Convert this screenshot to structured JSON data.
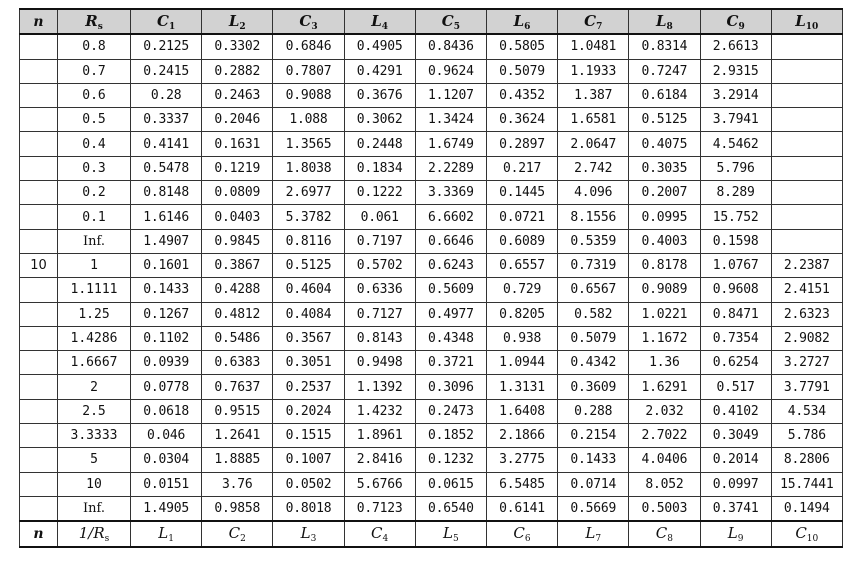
{
  "table": {
    "header": {
      "n": "n",
      "rs": {
        "base": "R",
        "sub": "s"
      },
      "cols": [
        {
          "base": "C",
          "sub": "1"
        },
        {
          "base": "L",
          "sub": "2"
        },
        {
          "base": "C",
          "sub": "3"
        },
        {
          "base": "L",
          "sub": "4"
        },
        {
          "base": "C",
          "sub": "5"
        },
        {
          "base": "L",
          "sub": "6"
        },
        {
          "base": "C",
          "sub": "7"
        },
        {
          "base": "L",
          "sub": "8"
        },
        {
          "base": "C",
          "sub": "9"
        },
        {
          "base": "L",
          "sub": "10"
        }
      ]
    },
    "footer": {
      "n": "n",
      "rs": "1/R",
      "rs_sub": "s",
      "cols": [
        {
          "base": "L",
          "sub": "1"
        },
        {
          "base": "C",
          "sub": "2"
        },
        {
          "base": "L",
          "sub": "3"
        },
        {
          "base": "C",
          "sub": "4"
        },
        {
          "base": "L",
          "sub": "5"
        },
        {
          "base": "C",
          "sub": "6"
        },
        {
          "base": "L",
          "sub": "7"
        },
        {
          "base": "C",
          "sub": "8"
        },
        {
          "base": "L",
          "sub": "9"
        },
        {
          "base": "C",
          "sub": "10"
        }
      ]
    },
    "rows": [
      {
        "n": "",
        "rs": "0.8",
        "values": [
          "0.2125",
          "0.3302",
          "0.6846",
          "0.4905",
          "0.8436",
          "0.5805",
          "1.0481",
          "0.8314",
          "2.6613",
          ""
        ]
      },
      {
        "n": "",
        "rs": "0.7",
        "values": [
          "0.2415",
          "0.2882",
          "0.7807",
          "0.4291",
          "0.9624",
          "0.5079",
          "1.1933",
          "0.7247",
          "2.9315",
          ""
        ]
      },
      {
        "n": "",
        "rs": "0.6",
        "values": [
          "0.28",
          "0.2463",
          "0.9088",
          "0.3676",
          "1.1207",
          "0.4352",
          "1.387",
          "0.6184",
          "3.2914",
          ""
        ]
      },
      {
        "n": "",
        "rs": "0.5",
        "values": [
          "0.3337",
          "0.2046",
          "1.088",
          "0.3062",
          "1.3424",
          "0.3624",
          "1.6581",
          "0.5125",
          "3.7941",
          ""
        ]
      },
      {
        "n": "",
        "rs": "0.4",
        "values": [
          "0.4141",
          "0.1631",
          "1.3565",
          "0.2448",
          "1.6749",
          "0.2897",
          "2.0647",
          "0.4075",
          "4.5462",
          ""
        ]
      },
      {
        "n": "",
        "rs": "0.3",
        "values": [
          "0.5478",
          "0.1219",
          "1.8038",
          "0.1834",
          "2.2289",
          "0.217",
          "2.742",
          "0.3035",
          "5.796",
          ""
        ]
      },
      {
        "n": "",
        "rs": "0.2",
        "values": [
          "0.8148",
          "0.0809",
          "2.6977",
          "0.1222",
          "3.3369",
          "0.1445",
          "4.096",
          "0.2007",
          "8.289",
          ""
        ]
      },
      {
        "n": "",
        "rs": "0.1",
        "values": [
          "1.6146",
          "0.0403",
          "5.3782",
          "0.061",
          "6.6602",
          "0.0721",
          "8.1556",
          "0.0995",
          "15.752",
          ""
        ]
      },
      {
        "n": "",
        "rs": "Inf.",
        "values": [
          "1.4907",
          "0.9845",
          "0.8116",
          "0.7197",
          "0.6646",
          "0.6089",
          "0.5359",
          "0.4003",
          "0.1598",
          ""
        ]
      },
      {
        "n": "10",
        "rs": "1",
        "values": [
          "0.1601",
          "0.3867",
          "0.5125",
          "0.5702",
          "0.6243",
          "0.6557",
          "0.7319",
          "0.8178",
          "1.0767",
          "2.2387"
        ]
      },
      {
        "n": "",
        "rs": "1.1111",
        "values": [
          "0.1433",
          "0.4288",
          "0.4604",
          "0.6336",
          "0.5609",
          "0.729",
          "0.6567",
          "0.9089",
          "0.9608",
          "2.4151"
        ]
      },
      {
        "n": "",
        "rs": "1.25",
        "values": [
          "0.1267",
          "0.4812",
          "0.4084",
          "0.7127",
          "0.4977",
          "0.8205",
          "0.582",
          "1.0221",
          "0.8471",
          "2.6323"
        ]
      },
      {
        "n": "",
        "rs": "1.4286",
        "values": [
          "0.1102",
          "0.5486",
          "0.3567",
          "0.8143",
          "0.4348",
          "0.938",
          "0.5079",
          "1.1672",
          "0.7354",
          "2.9082"
        ]
      },
      {
        "n": "",
        "rs": "1.6667",
        "values": [
          "0.0939",
          "0.6383",
          "0.3051",
          "0.9498",
          "0.3721",
          "1.0944",
          "0.4342",
          "1.36",
          "0.6254",
          "3.2727"
        ]
      },
      {
        "n": "",
        "rs": "2",
        "values": [
          "0.0778",
          "0.7637",
          "0.2537",
          "1.1392",
          "0.3096",
          "1.3131",
          "0.3609",
          "1.6291",
          "0.517",
          "3.7791"
        ]
      },
      {
        "n": "",
        "rs": "2.5",
        "values": [
          "0.0618",
          "0.9515",
          "0.2024",
          "1.4232",
          "0.2473",
          "1.6408",
          "0.288",
          "2.032",
          "0.4102",
          "4.534"
        ]
      },
      {
        "n": "",
        "rs": "3.3333",
        "values": [
          "0.046",
          "1.2641",
          "0.1515",
          "1.8961",
          "0.1852",
          "2.1866",
          "0.2154",
          "2.7022",
          "0.3049",
          "5.786"
        ]
      },
      {
        "n": "",
        "rs": "5",
        "values": [
          "0.0304",
          "1.8885",
          "0.1007",
          "2.8416",
          "0.1232",
          "3.2775",
          "0.1433",
          "4.0406",
          "0.2014",
          "8.2806"
        ]
      },
      {
        "n": "",
        "rs": "10",
        "values": [
          "0.0151",
          "3.76",
          "0.0502",
          "5.6766",
          "0.0615",
          "6.5485",
          "0.0714",
          "8.052",
          "0.0997",
          "15.7441"
        ]
      },
      {
        "n": "",
        "rs": "Inf.",
        "values": [
          "1.4905",
          "0.9858",
          "0.8018",
          "0.7123",
          "0.6540",
          "0.6141",
          "0.5669",
          "0.5003",
          "0.3741",
          "0.1494"
        ]
      }
    ]
  }
}
